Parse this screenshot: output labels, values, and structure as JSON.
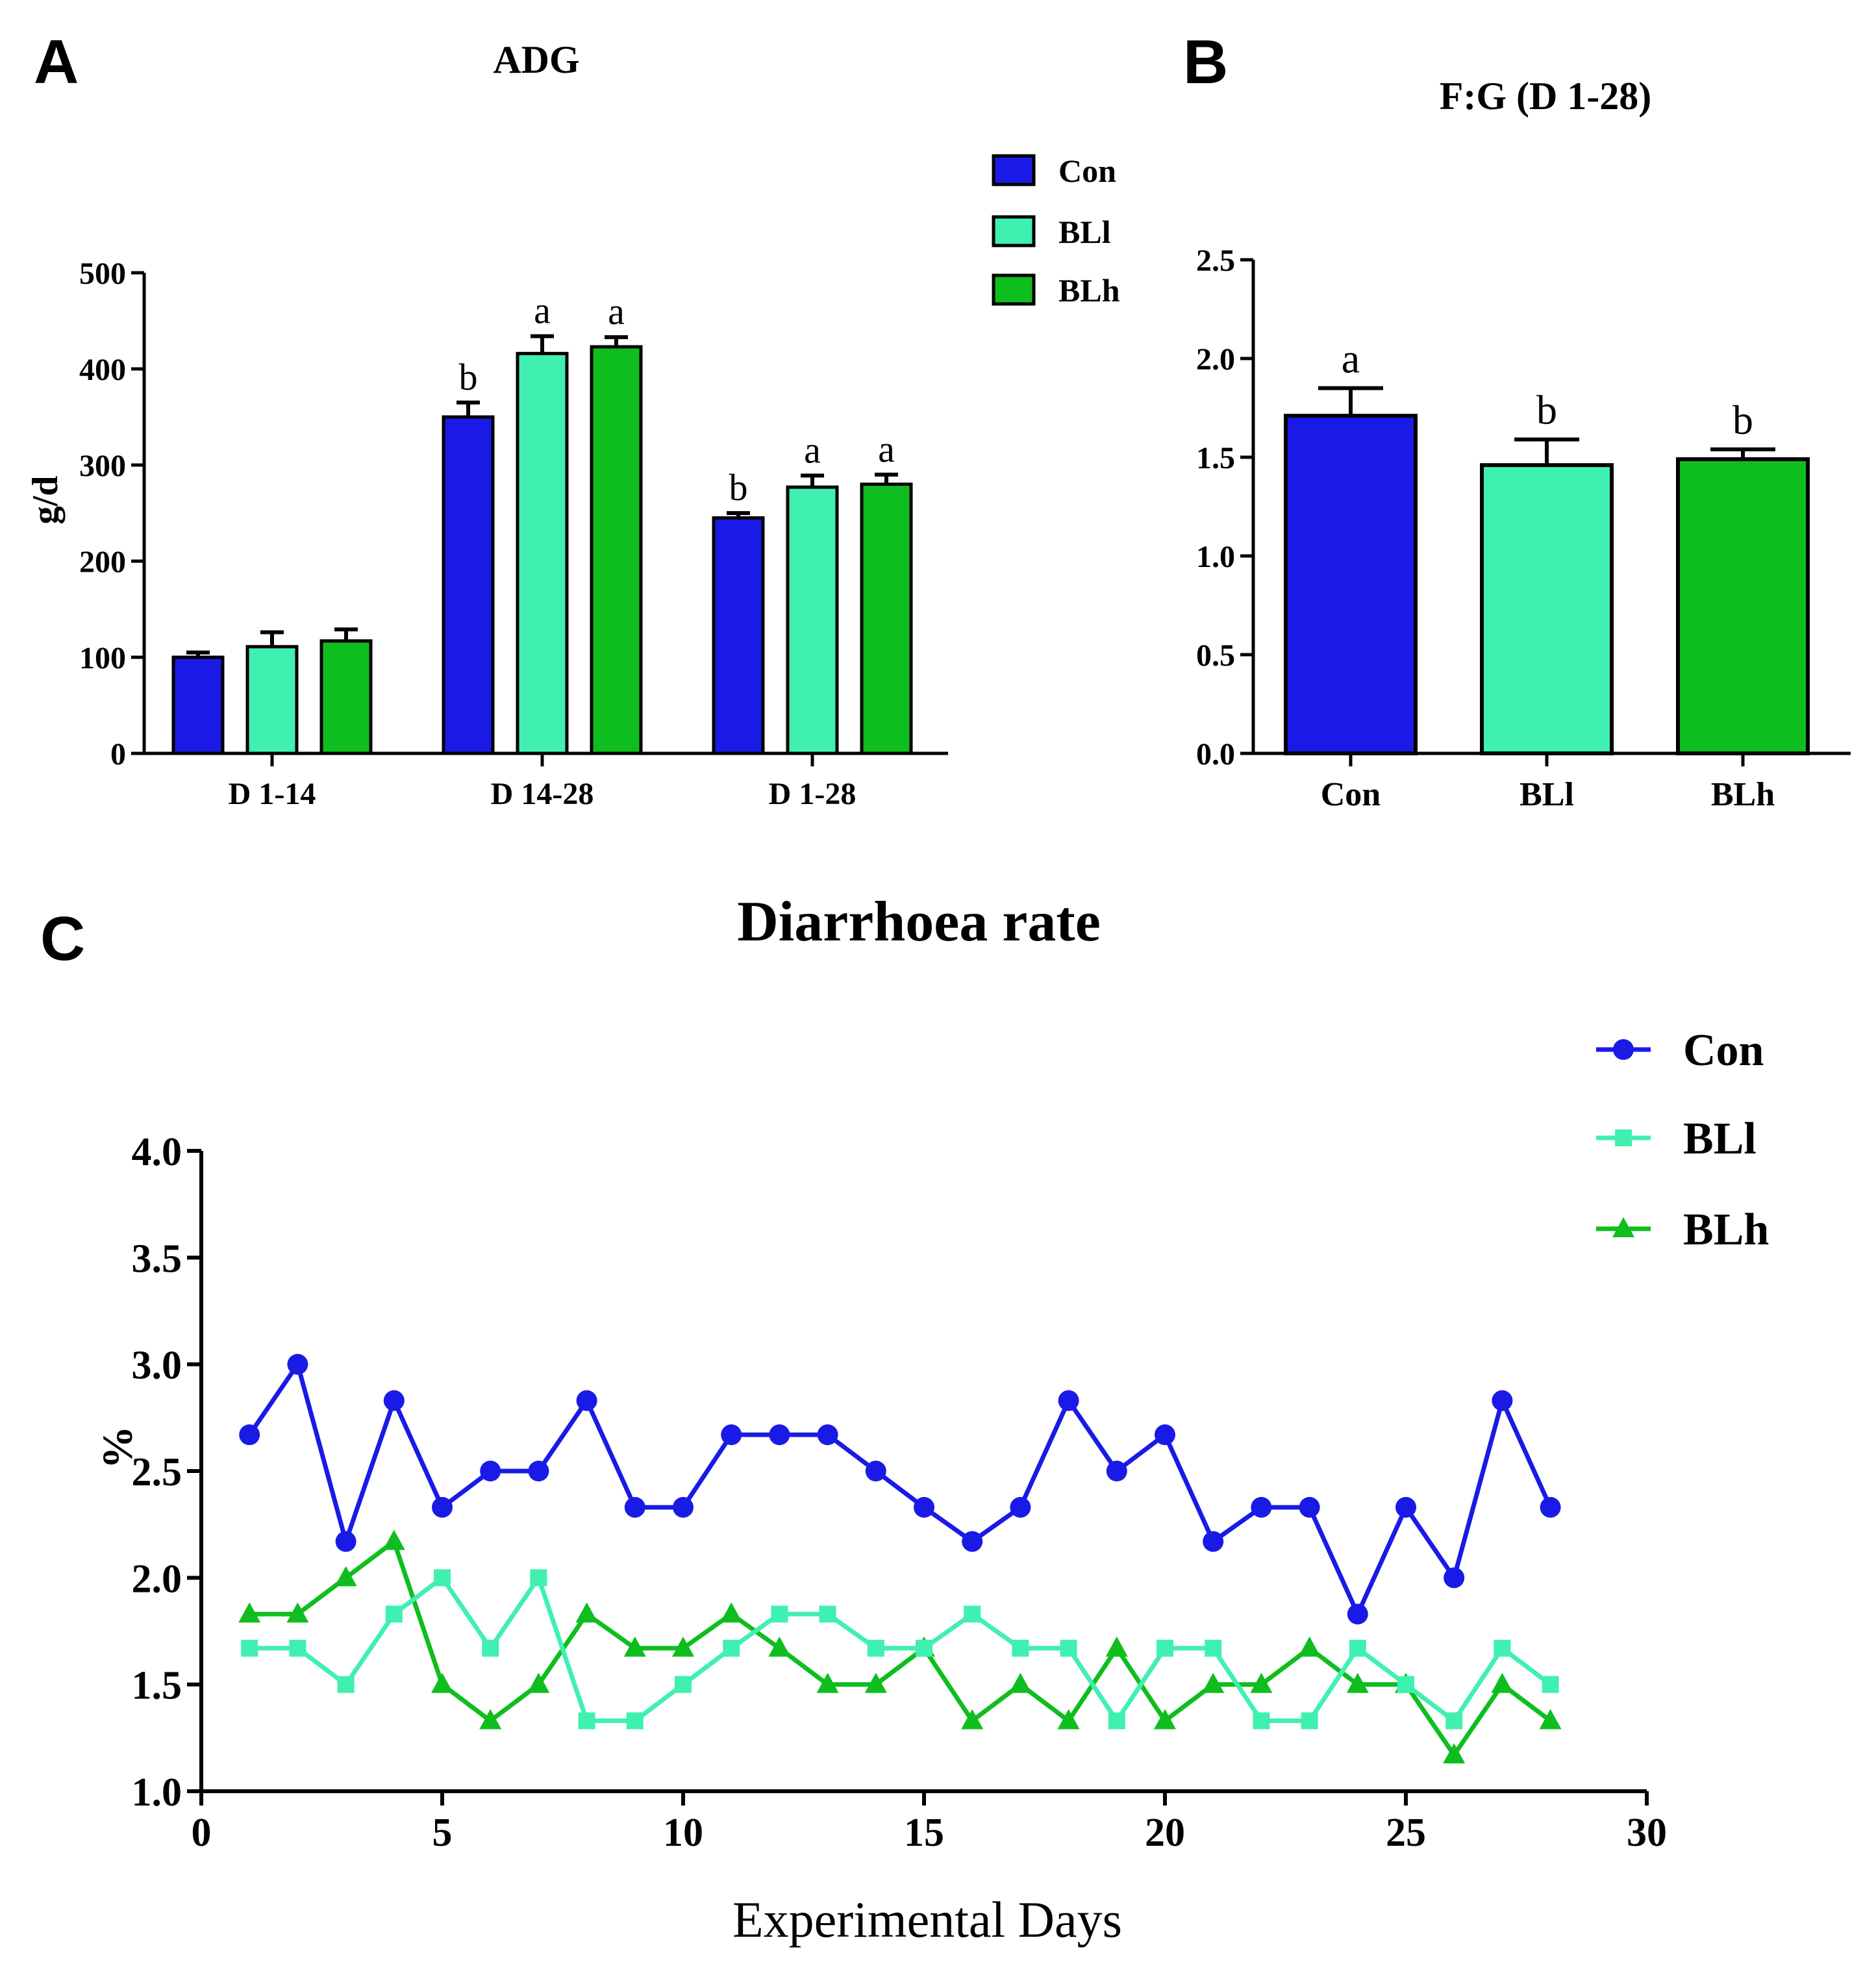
{
  "colors": {
    "Con": "#1a1ae6",
    "BLl": "#40f0b0",
    "BLh": "#0ebe1e",
    "axis": "#000000"
  },
  "chart_data": [
    {
      "panel": "A",
      "type": "bar",
      "title": "ADG",
      "xlabel": "",
      "ylabel": "g/d",
      "ylim": [
        0,
        500
      ],
      "yticks": [
        "0",
        "100",
        "200",
        "300",
        "400",
        "500"
      ],
      "categories": [
        "D 1-14",
        "D 14-28",
        "D 1-28"
      ],
      "legend_position": "top-right",
      "series": [
        {
          "name": "Con",
          "values": [
            100,
            350,
            245
          ],
          "errors": [
            5,
            15,
            5
          ],
          "letters": [
            "",
            "b",
            "b"
          ]
        },
        {
          "name": "BLl",
          "values": [
            111,
            416,
            277
          ],
          "errors": [
            15,
            18,
            12
          ],
          "letters": [
            "",
            "a",
            "a"
          ]
        },
        {
          "name": "BLh",
          "values": [
            117,
            423,
            280
          ],
          "errors": [
            12,
            10,
            10
          ],
          "letters": [
            "",
            "a",
            "a"
          ]
        }
      ]
    },
    {
      "panel": "B",
      "type": "bar",
      "title": "F:G (D 1-28)",
      "xlabel": "",
      "ylabel": "",
      "ylim": [
        0,
        2.5
      ],
      "yticks": [
        "0.0",
        "0.5",
        "1.0",
        "1.5",
        "2.0",
        "2.5"
      ],
      "categories": [
        "Con",
        "BLl",
        "BLh"
      ],
      "values": [
        1.71,
        1.46,
        1.49
      ],
      "errors": [
        0.14,
        0.13,
        0.05
      ],
      "letters": [
        "a",
        "b",
        "b"
      ]
    },
    {
      "panel": "C",
      "type": "line",
      "title": "Diarrhoea rate",
      "xlabel": "Experimental Days",
      "ylabel": "%",
      "xlim": [
        0,
        30
      ],
      "ylim": [
        1.0,
        4.0
      ],
      "xticks": [
        "0",
        "5",
        "10",
        "15",
        "20",
        "25",
        "30"
      ],
      "yticks": [
        "1.0",
        "1.5",
        "2.0",
        "2.5",
        "3.0",
        "3.5",
        "4.0"
      ],
      "legend_position": "top-right",
      "x": [
        1,
        2,
        3,
        4,
        5,
        6,
        7,
        8,
        9,
        10,
        11,
        12,
        13,
        14,
        15,
        16,
        17,
        18,
        19,
        20,
        21,
        22,
        23,
        24,
        25,
        26,
        27,
        28
      ],
      "series": [
        {
          "name": "Con",
          "marker": "circle",
          "values": [
            2.67,
            3.0,
            2.17,
            2.83,
            2.33,
            2.5,
            2.5,
            2.83,
            2.33,
            2.33,
            2.67,
            2.67,
            2.67,
            2.5,
            2.33,
            2.17,
            2.33,
            2.83,
            2.5,
            2.67,
            2.17,
            2.33,
            2.33,
            1.83,
            2.33,
            2.0,
            2.83,
            2.33
          ]
        },
        {
          "name": "BLl",
          "marker": "square",
          "values": [
            1.67,
            1.67,
            1.5,
            1.83,
            2.0,
            1.67,
            2.0,
            1.33,
            1.33,
            1.5,
            1.67,
            1.83,
            1.83,
            1.67,
            1.67,
            1.83,
            1.67,
            1.67,
            1.33,
            1.67,
            1.67,
            1.33,
            1.33,
            1.67,
            1.5,
            1.33,
            1.67,
            1.5
          ]
        },
        {
          "name": "BLh",
          "marker": "triangle",
          "values": [
            1.83,
            1.83,
            2.0,
            2.17,
            1.5,
            1.33,
            1.5,
            1.83,
            1.67,
            1.67,
            1.83,
            1.67,
            1.5,
            1.5,
            1.67,
            1.33,
            1.5,
            1.33,
            1.67,
            1.33,
            1.5,
            1.5,
            1.67,
            1.5,
            1.5,
            1.17,
            1.5,
            1.33
          ]
        }
      ]
    }
  ]
}
